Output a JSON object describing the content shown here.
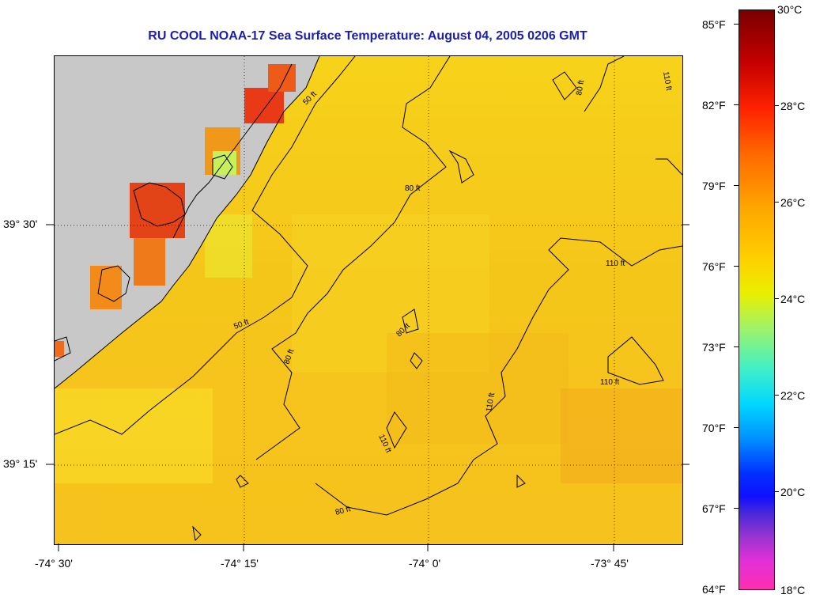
{
  "title": "RU COOL  NOAA-17  Sea Surface Temperature:  August 04, 2005 0206 GMT",
  "map": {
    "lat_labels": [
      "39° 30'",
      "39° 15'"
    ],
    "lon_labels": [
      "-74° 30'",
      "-74° 15'",
      "-74° 0'",
      "-73° 45'"
    ],
    "land_color": "#c8c8c8",
    "ocean_base_color": "#f6c81a",
    "warm_patch_color": "#f0401a",
    "depth_contours": [
      "50 ft",
      "80 ft",
      "110 ft"
    ],
    "contour_labels": [
      "50 ft",
      "50 ft",
      "80 ft",
      "80 ft",
      "80 ft",
      "80 ft",
      "80 ft",
      "110 ft",
      "110 ft",
      "110 ft",
      "110 ft",
      "110 ft"
    ]
  },
  "colorbar": {
    "fahrenheit_labels": [
      "85°F",
      "82°F",
      "79°F",
      "76°F",
      "73°F",
      "70°F",
      "67°F",
      "64°F"
    ],
    "celsius_labels": [
      "30°C",
      "28°C",
      "26°C",
      "24°C",
      "22°C",
      "20°C",
      "18°C"
    ],
    "range_celsius": [
      18,
      30
    ]
  }
}
